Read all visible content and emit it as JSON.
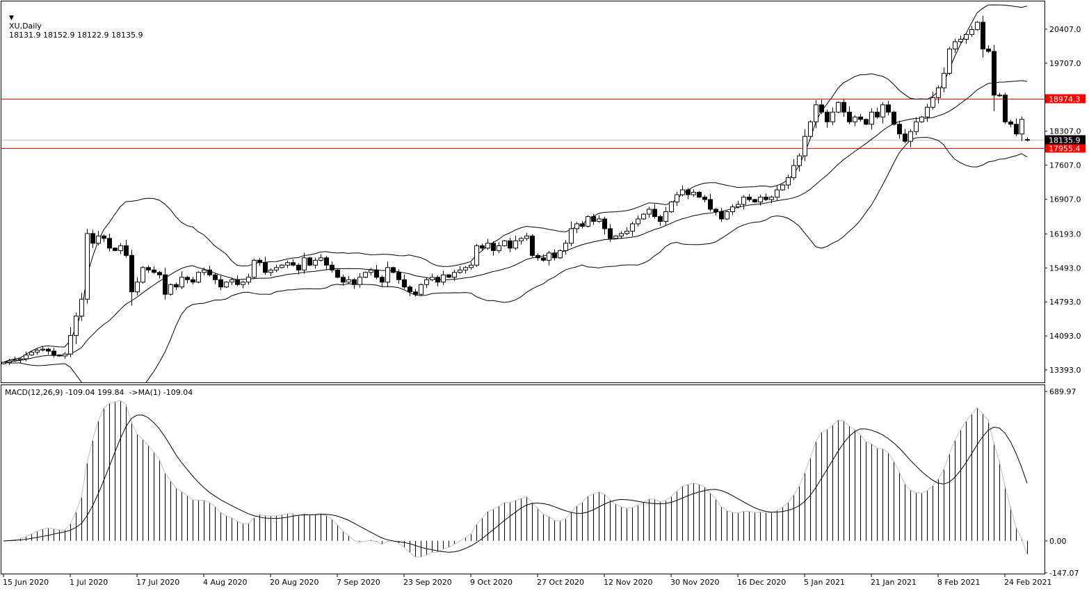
{
  "header": {
    "symbol": "XU,Daily",
    "ohlc": "18131.9 18152.9 18122.9 18135.9",
    "menu_icon": "triangle-down-icon"
  },
  "macd_header": "MACD(12,26,9) -109.04 199.84  ->MA(1) -109.04",
  "colors": {
    "background": "#ffffff",
    "candle": "#000000",
    "level_line": "#ff0000",
    "price_line": "#c0c0c0"
  },
  "chart_data": [
    {
      "type": "candlestick",
      "title": "XU,Daily",
      "x_tick_labels": [
        "15 Jun 2020",
        "1 Jul 2020",
        "17 Jul 2020",
        "4 Aug 2020",
        "20 Aug 2020",
        "7 Sep 2020",
        "23 Sep 2020",
        "9 Oct 2020",
        "27 Oct 2020",
        "12 Nov 2020",
        "30 Nov 2020",
        "16 Dec 2020",
        "5 Jan 2021",
        "21 Jan 2021",
        "8 Feb 2021",
        "24 Feb 2021"
      ],
      "y_tick_labels": [
        "20407.0",
        "19707.0",
        "18307.0",
        "17607.0",
        "16907.0",
        "16193.0",
        "15493.0",
        "14793.0",
        "14093.0",
        "13393.0"
      ],
      "ylim": [
        13393,
        20407
      ],
      "indicators": [
        "Bollinger Bands (20,2)"
      ],
      "levels": [
        {
          "value": 18974.3,
          "label": "18974.3",
          "color": "#ff0000"
        },
        {
          "value": 17955.4,
          "label": "17955.4",
          "color": "#ff0000"
        }
      ],
      "current_price": {
        "value": 18135.9,
        "label": "18135.9"
      },
      "last_bar": {
        "open": 18131.9,
        "high": 18152.9,
        "low": 18122.9,
        "close": 18135.9
      },
      "closes": [
        13550,
        13580,
        13600,
        13620,
        13700,
        13760,
        13800,
        13820,
        13780,
        13700,
        13680,
        13720,
        14100,
        14500,
        14850,
        16200,
        16000,
        16150,
        16100,
        15900,
        15850,
        15950,
        15750,
        15000,
        15200,
        15500,
        15450,
        15400,
        15350,
        14950,
        15150,
        15100,
        15300,
        15250,
        15200,
        15400,
        15450,
        15350,
        15250,
        15100,
        15200,
        15250,
        15150,
        15200,
        15300,
        15650,
        15600,
        15400,
        15450,
        15500,
        15550,
        15600,
        15550,
        15450,
        15700,
        15550,
        15650,
        15700,
        15550,
        15450,
        15300,
        15200,
        15250,
        15150,
        15300,
        15400,
        15450,
        15300,
        15200,
        15500,
        15400,
        15250,
        15100,
        15000,
        14950,
        15150,
        15250,
        15300,
        15200,
        15350,
        15300,
        15400,
        15450,
        15500,
        15550,
        15950,
        15900,
        16000,
        15850,
        15950,
        16050,
        15900,
        16050,
        16100,
        16150,
        15750,
        15700,
        15650,
        15800,
        15700,
        15850,
        16000,
        16300,
        16400,
        16350,
        16550,
        16450,
        16500,
        16300,
        16100,
        16150,
        16200,
        16250,
        16400,
        16500,
        16600,
        16700,
        16550,
        16450,
        16650,
        16850,
        17000,
        17100,
        17000,
        17050,
        16950,
        16900,
        16700,
        16650,
        16500,
        16650,
        16750,
        16800,
        16950,
        16900,
        16850,
        16950,
        16900,
        16950,
        17100,
        17200,
        17350,
        17600,
        17800,
        18200,
        18500,
        18850,
        18700,
        18500,
        18700,
        18900,
        18700,
        18500,
        18600,
        18550,
        18450,
        18700,
        18600,
        18850,
        18700,
        18450,
        18250,
        18100,
        18300,
        18500,
        18600,
        18800,
        19000,
        19200,
        19500,
        20000,
        20150,
        20200,
        20300,
        20400,
        20550,
        20000,
        19950,
        19050,
        19050,
        18500,
        18450,
        18250,
        18550,
        18136
      ]
    },
    {
      "type": "bar",
      "title": "MACD(12,26,9)",
      "values_label": "-109.04 199.84",
      "y_tick_labels": [
        "689.97",
        "0.00",
        "-147.07"
      ],
      "ylim": [
        -147.07,
        689.97
      ]
    }
  ]
}
